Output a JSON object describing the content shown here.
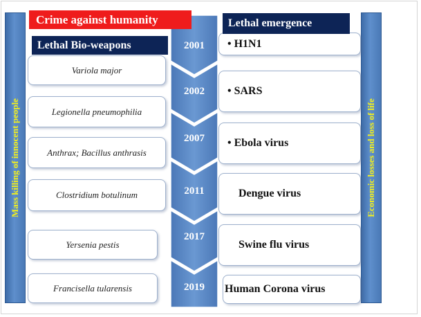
{
  "red_label": "Crime against humanity",
  "left_header": "Lethal Bio-weapons",
  "right_header": "Lethal  emergence",
  "left_side_text": "Mass killing of innocent people",
  "right_side_text": "Economic losses and loss of life",
  "bioweapons": [
    "Variola major",
    "Legionella pneumophilia",
    "Anthrax; Bacillus anthrasis",
    "Clostridium botulinum",
    "Yersenia pestis",
    "Francisella tularensis"
  ],
  "years": [
    "2001",
    "2002",
    "2007",
    "2011",
    "2017",
    "2019"
  ],
  "emergence": [
    "• H1N1",
    "• SARS",
    "• Ebola virus",
    "Dengue virus",
    "Swine flu virus",
    "Human Corona virus"
  ],
  "colors": {
    "red": "#ef1c1c",
    "navy": "#0d2456",
    "bar_blue": "#4a79b6",
    "chevron_blue": "#5b87c4",
    "side_text_yellow": "#f3f01c"
  }
}
